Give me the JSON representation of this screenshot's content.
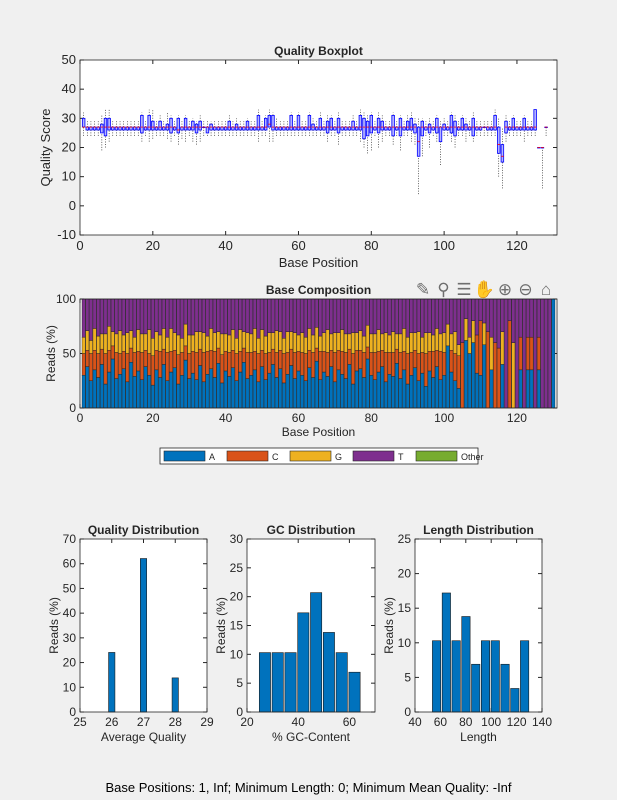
{
  "toolbar": {
    "icons": [
      "brush-icon",
      "data-tips-icon",
      "legend-icon",
      "pan-hand-icon",
      "zoom-in-icon",
      "zoom-out-icon",
      "home-icon"
    ]
  },
  "footer": {
    "text": "Base Positions: 1, Inf;   Minimum Length: 0;   Minimum Mean Quality: -Inf"
  },
  "chart_data": [
    {
      "type": "boxplot",
      "title": "Quality Boxplot",
      "xlabel": "Base Position",
      "ylabel": "Quality Score",
      "xlim": [
        0,
        131
      ],
      "ylim": [
        -10,
        50
      ],
      "xticks": [
        0,
        20,
        40,
        60,
        80,
        100,
        120
      ],
      "yticks": [
        -10,
        0,
        10,
        20,
        30,
        40,
        50
      ],
      "box_color": "#0000ff",
      "median_color": "#ff0000",
      "boxes_lo_q1_med_q3_hi": [
        [
          24,
          27,
          27,
          30,
          32
        ],
        [
          24,
          26,
          27,
          27,
          29
        ],
        [
          24,
          26,
          27,
          27,
          29
        ],
        [
          24,
          26,
          27,
          27,
          29
        ],
        [
          24,
          26,
          27,
          27,
          29
        ],
        [
          19,
          25,
          27,
          28,
          31
        ],
        [
          20,
          24,
          27,
          30,
          33
        ],
        [
          22,
          26,
          27,
          30,
          33
        ],
        [
          24,
          26,
          27,
          27,
          29
        ],
        [
          24,
          26,
          27,
          27,
          29
        ],
        [
          24,
          26,
          27,
          27,
          29
        ],
        [
          24,
          26,
          27,
          27,
          29
        ],
        [
          24,
          26,
          27,
          27,
          29
        ],
        [
          24,
          26,
          27,
          27,
          29
        ],
        [
          24,
          26,
          27,
          27,
          29
        ],
        [
          24,
          26,
          27,
          27,
          29
        ],
        [
          22,
          25,
          27,
          31,
          32
        ],
        [
          24,
          26,
          27,
          27,
          29
        ],
        [
          22,
          26,
          27,
          31,
          33
        ],
        [
          23,
          26,
          27,
          29,
          33
        ],
        [
          24,
          26,
          27,
          27,
          29
        ],
        [
          24,
          26,
          27,
          29,
          31
        ],
        [
          24,
          26,
          27,
          27,
          29
        ],
        [
          23,
          26,
          27,
          28,
          32
        ],
        [
          22,
          25,
          27,
          30,
          31
        ],
        [
          24,
          26,
          27,
          27,
          29
        ],
        [
          21,
          25,
          26,
          30,
          31
        ],
        [
          23,
          26,
          27,
          27,
          29
        ],
        [
          22,
          26,
          27,
          30,
          31
        ],
        [
          24,
          26,
          27,
          27,
          29
        ],
        [
          22,
          26,
          27,
          29,
          30
        ],
        [
          21,
          25,
          27,
          28,
          29
        ],
        [
          22,
          26,
          27,
          29,
          31
        ],
        [
          24,
          27,
          27,
          27,
          29
        ],
        [
          24,
          25,
          27,
          27,
          29
        ],
        [
          24,
          26,
          27,
          28,
          29
        ],
        [
          24,
          26,
          27,
          27,
          29
        ],
        [
          24,
          26,
          27,
          27,
          29
        ],
        [
          24,
          26,
          27,
          27,
          29
        ],
        [
          24,
          26,
          27,
          27,
          29
        ],
        [
          24,
          26,
          27,
          29,
          31
        ],
        [
          24,
          26,
          27,
          27,
          29
        ],
        [
          24,
          26,
          27,
          28,
          30
        ],
        [
          24,
          26,
          27,
          27,
          29
        ],
        [
          24,
          26,
          27,
          27,
          29
        ],
        [
          24,
          26,
          27,
          29,
          30
        ],
        [
          24,
          26,
          27,
          27,
          29
        ],
        [
          24,
          26,
          27,
          27,
          29
        ],
        [
          22,
          26,
          27,
          31,
          33
        ],
        [
          24,
          26,
          27,
          27,
          29
        ],
        [
          24,
          26,
          27,
          30,
          31
        ],
        [
          22,
          27,
          28,
          31,
          33
        ],
        [
          22,
          26,
          27,
          31,
          32
        ],
        [
          24,
          26,
          27,
          27,
          30
        ],
        [
          24,
          26,
          27,
          27,
          29
        ],
        [
          24,
          26,
          27,
          27,
          29
        ],
        [
          24,
          26,
          27,
          27,
          29
        ],
        [
          24,
          26,
          27,
          31,
          32
        ],
        [
          24,
          26,
          27,
          27,
          29
        ],
        [
          24,
          26,
          27,
          31,
          32
        ],
        [
          24,
          26,
          27,
          27,
          29
        ],
        [
          24,
          26,
          27,
          27,
          29
        ],
        [
          24,
          26,
          27,
          31,
          32
        ],
        [
          24,
          26,
          27,
          28,
          30
        ],
        [
          24,
          26,
          27,
          27,
          29
        ],
        [
          24,
          26,
          27,
          30,
          32
        ],
        [
          24,
          26,
          27,
          27,
          29
        ],
        [
          22,
          25,
          27,
          29,
          31
        ],
        [
          24,
          26,
          27,
          30,
          31
        ],
        [
          24,
          26,
          27,
          27,
          29
        ],
        [
          21,
          25,
          27,
          30,
          32
        ],
        [
          24,
          26,
          27,
          27,
          29
        ],
        [
          24,
          26,
          27,
          27,
          29
        ],
        [
          24,
          26,
          27,
          27,
          29
        ],
        [
          24,
          26,
          27,
          29,
          31
        ],
        [
          24,
          26,
          27,
          27,
          29
        ],
        [
          22,
          26,
          27,
          31,
          33
        ],
        [
          20,
          23,
          27,
          30,
          32
        ],
        [
          18,
          24,
          27,
          29,
          31
        ],
        [
          19,
          25,
          27,
          31,
          32
        ],
        [
          24,
          26,
          27,
          27,
          29
        ],
        [
          20,
          25,
          27,
          30,
          32
        ],
        [
          22,
          26,
          27,
          29,
          31
        ],
        [
          24,
          26,
          27,
          27,
          29
        ],
        [
          24,
          26,
          27,
          27,
          29
        ],
        [
          21,
          24,
          27,
          31,
          32
        ],
        [
          24,
          26,
          27,
          27,
          29
        ],
        [
          19,
          24,
          27,
          30,
          31
        ],
        [
          24,
          26,
          27,
          27,
          29
        ],
        [
          24,
          26,
          27,
          29,
          31
        ],
        [
          22,
          26,
          27,
          30,
          32
        ],
        [
          21,
          25,
          27,
          28,
          30
        ],
        [
          4,
          17,
          22,
          27,
          30
        ],
        [
          17,
          24,
          27,
          29,
          30
        ],
        [
          24,
          26,
          27,
          27,
          29
        ],
        [
          20,
          25,
          27,
          28,
          30
        ],
        [
          24,
          26,
          27,
          27,
          29
        ],
        [
          22,
          25,
          27,
          30,
          31
        ],
        [
          14,
          22,
          27,
          27,
          29
        ],
        [
          24,
          26,
          27,
          28,
          30
        ],
        [
          24,
          26,
          27,
          27,
          29
        ],
        [
          22,
          25,
          27,
          31,
          32
        ],
        [
          20,
          24,
          27,
          29,
          31
        ],
        [
          24,
          26,
          27,
          27,
          29
        ],
        [
          24,
          26,
          27,
          30,
          31
        ],
        [
          22,
          26,
          27,
          28,
          30
        ],
        [
          24,
          26,
          27,
          27,
          29
        ],
        [
          22,
          24,
          27,
          30,
          32
        ],
        [
          24,
          26,
          27,
          27,
          29
        ],
        [
          24,
          26,
          27,
          27,
          29
        ],
        [
          24,
          27,
          27,
          27,
          29
        ],
        [
          24,
          26,
          27,
          27,
          29
        ],
        [
          24,
          26,
          27,
          27,
          29
        ],
        [
          24,
          26,
          27,
          31,
          33
        ],
        [
          10,
          18,
          21,
          27,
          30
        ],
        [
          6,
          15,
          17,
          21,
          27
        ],
        [
          22,
          25,
          27,
          29,
          31
        ],
        [
          24,
          26,
          27,
          27,
          29
        ],
        [
          24,
          26,
          27,
          30,
          31
        ],
        [
          24,
          26,
          27,
          27,
          29
        ],
        [
          24,
          26,
          27,
          27,
          29
        ],
        [
          22,
          26,
          27,
          30,
          31
        ],
        [
          24,
          26,
          27,
          27,
          29
        ],
        [
          24,
          26,
          27,
          27,
          29
        ],
        [
          24,
          26,
          27,
          33,
          33
        ],
        [
          20,
          20,
          20,
          20,
          20
        ],
        [
          6,
          20,
          20,
          20,
          20
        ],
        [
          24,
          27,
          27,
          27,
          27
        ]
      ]
    },
    {
      "type": "stacked_bar",
      "title": "Base Composition",
      "xlabel": "Base Position",
      "ylabel": "Reads (%)",
      "xlim": [
        0,
        131
      ],
      "ylim": [
        0,
        100
      ],
      "xticks": [
        0,
        20,
        40,
        60,
        80,
        100,
        120
      ],
      "yticks": [
        0,
        50,
        100
      ],
      "legend": [
        "A",
        "C",
        "G",
        "T",
        "Other"
      ],
      "legend_placement": "bottom",
      "colors": {
        "A": "#0072bd",
        "C": "#d95319",
        "G": "#edb120",
        "T": "#7e2f8e",
        "Other": "#77ac30"
      },
      "A": [
        30,
        38,
        25,
        35,
        28,
        40,
        22,
        33,
        45,
        27,
        31,
        36,
        24,
        42,
        29,
        34,
        26,
        38,
        30,
        21,
        35,
        28,
        40,
        25,
        33,
        37,
        22,
        30,
        44,
        27,
        32,
        26,
        39,
        24,
        31,
        36,
        28,
        41,
        23,
        34,
        29,
        37,
        25,
        33,
        42,
        27,
        30,
        35,
        24,
        38,
        26,
        32,
        40,
        28,
        36,
        23,
        31,
        39,
        27,
        34,
        30,
        25,
        37,
        28,
        43,
        26,
        33,
        29,
        38,
        24,
        35,
        31,
        27,
        40,
        22,
        34,
        36,
        28,
        45,
        30,
        26,
        33,
        38,
        24,
        31,
        29,
        41,
        27,
        35,
        22,
        30,
        37,
        25,
        32,
        20,
        34,
        28,
        38,
        26,
        30,
        57,
        33,
        25,
        18,
        0,
        62,
        50,
        60,
        32,
        30,
        58,
        0,
        35,
        0,
        0,
        40,
        0,
        0,
        0,
        0,
        35,
        0,
        35,
        35,
        0,
        35,
        0,
        0,
        0,
        100
      ],
      "C": [
        20,
        15,
        25,
        18,
        22,
        14,
        28,
        20,
        12,
        24,
        19,
        16,
        26,
        13,
        22,
        18,
        25,
        15,
        20,
        27,
        18,
        24,
        14,
        26,
        19,
        16,
        27,
        21,
        13,
        23,
        20,
        25,
        15,
        27,
        21,
        17,
        24,
        14,
        26,
        18,
        22,
        16,
        25,
        19,
        13,
        24,
        21,
        17,
        26,
        15,
        24,
        19,
        14,
        23,
        17,
        27,
        20,
        15,
        24,
        18,
        21,
        25,
        16,
        23,
        12,
        26,
        19,
        22,
        15,
        27,
        18,
        21,
        24,
        14,
        28,
        19,
        17,
        23,
        11,
        21,
        25,
        19,
        15,
        27,
        20,
        22,
        13,
        24,
        17,
        28,
        21,
        16,
        25,
        19,
        30,
        18,
        24,
        15,
        26,
        21,
        0,
        20,
        25,
        30,
        60,
        0,
        0,
        0,
        35,
        50,
        0,
        70,
        0,
        60,
        55,
        0,
        0,
        80,
        0,
        0,
        30,
        0,
        30,
        30,
        0,
        30,
        0,
        0,
        0,
        0
      ],
      "G": [
        15,
        18,
        12,
        20,
        16,
        14,
        18,
        22,
        13,
        17,
        21,
        15,
        19,
        16,
        14,
        20,
        17,
        15,
        22,
        16,
        17,
        15,
        19,
        14,
        21,
        16,
        18,
        13,
        20,
        17,
        15,
        19,
        16,
        18,
        14,
        20,
        17,
        15,
        19,
        16,
        16,
        19,
        14,
        20,
        15,
        18,
        17,
        21,
        14,
        19,
        16,
        18,
        15,
        20,
        17,
        14,
        19,
        16,
        18,
        15,
        18,
        15,
        20,
        16,
        19,
        14,
        17,
        21,
        15,
        18,
        16,
        20,
        17,
        14,
        19,
        16,
        18,
        15,
        20,
        17,
        17,
        20,
        15,
        18,
        16,
        19,
        14,
        17,
        21,
        15,
        18,
        16,
        20,
        14,
        19,
        17,
        15,
        20,
        16,
        18,
        20,
        15,
        20,
        10,
        0,
        20,
        15,
        20,
        0,
        0,
        20,
        0,
        30,
        0,
        0,
        30,
        0,
        0,
        60,
        0,
        0,
        0,
        0,
        0,
        0,
        0,
        0,
        0,
        0,
        0
      ]
    },
    {
      "type": "bar",
      "title": "Quality Distribution",
      "xlabel": "Average Quality",
      "ylabel": "Reads (%)",
      "xlim": [
        25,
        29
      ],
      "ylim": [
        0,
        70
      ],
      "xticks": [
        25,
        26,
        27,
        28,
        29
      ],
      "yticks": [
        0,
        10,
        20,
        30,
        40,
        50,
        60,
        70
      ],
      "x": [
        26,
        27,
        28
      ],
      "values": [
        24.1,
        62.1,
        13.8
      ],
      "bar_width": 0.2,
      "color": "#0072bd"
    },
    {
      "type": "bar",
      "title": "GC Distribution",
      "xlabel": "% GC-Content",
      "ylabel": "Reads (%)",
      "xlim": [
        20,
        70
      ],
      "ylim": [
        0,
        30
      ],
      "xticks": [
        20,
        40,
        60
      ],
      "yticks": [
        0,
        5,
        10,
        15,
        20,
        25,
        30
      ],
      "x": [
        27,
        32,
        37,
        42,
        47,
        52,
        57,
        62
      ],
      "values": [
        10.3,
        10.3,
        10.3,
        17.2,
        20.7,
        13.8,
        10.3,
        6.9
      ],
      "bar_width": 4.4,
      "color": "#0072bd"
    },
    {
      "type": "bar",
      "title": "Length Distribution",
      "xlabel": "Length",
      "ylabel": "Reads (%)",
      "xlim": [
        40,
        140
      ],
      "ylim": [
        0,
        25
      ],
      "xticks": [
        40,
        60,
        80,
        100,
        120,
        140
      ],
      "yticks": [
        0,
        5,
        10,
        15,
        20,
        25
      ],
      "x": [
        57,
        64.7,
        72.4,
        80.1,
        87.8,
        95.5,
        103.2,
        110.9,
        118.6,
        126.3
      ],
      "values": [
        10.3,
        17.2,
        10.3,
        13.8,
        6.9,
        10.3,
        10.3,
        6.9,
        3.4,
        10.3
      ],
      "bar_width": 6.6,
      "color": "#0072bd"
    }
  ]
}
